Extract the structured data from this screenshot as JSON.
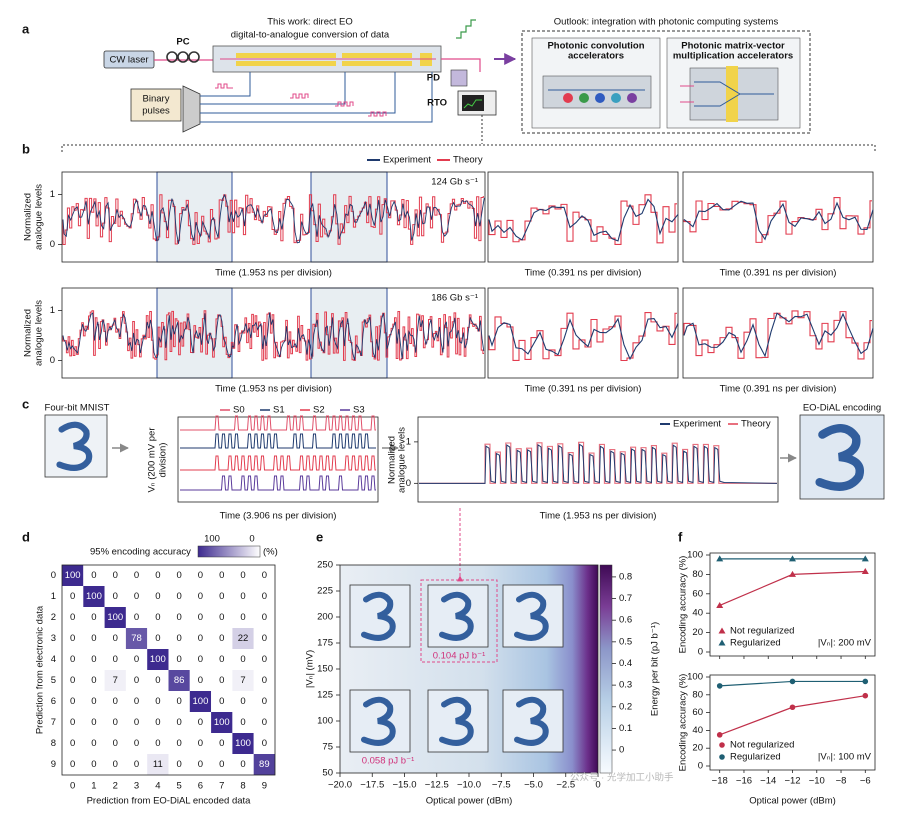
{
  "panel_a": {
    "label": "a",
    "cw_laser": "CW laser",
    "pc": "PC",
    "title_lines": [
      "This work: direct EO",
      "digital-to-analogue conversion of data"
    ],
    "binary_pulses": [
      "Binary",
      "pulses"
    ],
    "pd": "PD",
    "rto": "RTO",
    "outlook": "Outlook: integration with photonic computing systems",
    "conv": [
      "Photonic convolution",
      "accelerators"
    ],
    "mvm": [
      "Photonic matrix-vector",
      "multiplication accelerators"
    ]
  },
  "panel_b": {
    "label": "b",
    "legend": [
      "Experiment",
      "Theory"
    ],
    "colors": [
      "#1f3a6e",
      "#e23c4f"
    ],
    "ylabel": [
      "Normalized",
      "analogue levels"
    ],
    "ylim": [
      -0.35,
      1.45
    ],
    "yticks": [
      0,
      1
    ],
    "rates": [
      "124 Gb s⁻¹",
      "186 Gb s⁻¹"
    ],
    "xlabels": [
      "Time (1.953 ns per division)",
      "Time (0.391 ns per division)",
      "Time (0.391 ns per division)"
    ]
  },
  "panel_c": {
    "label": "c",
    "mnist": "Four-bit MNIST",
    "encoding": "EO-DiAL encoding",
    "s_legend": [
      "S0",
      "S1",
      "S2",
      "S3"
    ],
    "s_colors": [
      "#e0506a",
      "#1f3a6e",
      "#e23c4f",
      "#5a3a9a"
    ],
    "s_ylabel": [
      "Vₙ (200 mV per",
      "division)"
    ],
    "s_xlabel": "Time (3.906 ns per division)",
    "legend": [
      "Experiment",
      "Theory"
    ],
    "colors": [
      "#1f3a6e",
      "#e8707e"
    ],
    "ylabel": [
      "Normalized",
      "analogue levels"
    ],
    "ylim": [
      -0.45,
      1.6
    ],
    "yticks": [
      0,
      1
    ],
    "xlabel": "Time (1.953 ns per division)"
  },
  "panel_d": {
    "label": "d",
    "title": "95% encoding accuracy",
    "cbar": [
      "100",
      "0",
      "(%)"
    ],
    "ticks": [
      0,
      1,
      2,
      3,
      4,
      5,
      6,
      7,
      8,
      9
    ],
    "ylabel": "Prediction from electronic data",
    "xlabel": "Prediction from EO-DiAL encoded data",
    "matrix": [
      [
        100,
        0,
        0,
        0,
        0,
        0,
        0,
        0,
        0,
        0
      ],
      [
        0,
        100,
        0,
        0,
        0,
        0,
        0,
        0,
        0,
        0
      ],
      [
        0,
        0,
        100,
        0,
        0,
        0,
        0,
        0,
        0,
        0
      ],
      [
        0,
        0,
        0,
        78,
        0,
        0,
        0,
        0,
        22,
        0
      ],
      [
        0,
        0,
        0,
        0,
        100,
        0,
        0,
        0,
        0,
        0
      ],
      [
        0,
        0,
        7,
        0,
        0,
        86,
        0,
        0,
        7,
        0
      ],
      [
        0,
        0,
        0,
        0,
        0,
        0,
        100,
        0,
        0,
        0
      ],
      [
        0,
        0,
        0,
        0,
        0,
        0,
        0,
        100,
        0,
        0
      ],
      [
        0,
        0,
        0,
        0,
        0,
        0,
        0,
        0,
        100,
        0
      ],
      [
        0,
        0,
        0,
        0,
        11,
        0,
        0,
        0,
        0,
        89
      ]
    ]
  },
  "panel_e": {
    "label": "e",
    "xlabel": "Optical power (dBm)",
    "ylabel": "|Vₙ| (mV)",
    "xlim": [
      -20,
      0
    ],
    "xticks": [
      {
        "value": -20,
        "label": "−20.0"
      },
      {
        "value": -17.5,
        "label": "−17.5"
      },
      {
        "value": -15,
        "label": "−15.0"
      },
      {
        "value": -12.5,
        "label": "−12.5"
      },
      {
        "value": -10,
        "label": "−10.0"
      },
      {
        "value": -7.5,
        "label": "−7.5"
      },
      {
        "value": -5,
        "label": "−5.0"
      },
      {
        "value": -2.5,
        "label": "−2.5"
      },
      0
    ],
    "ylim": [
      50,
      250
    ],
    "yticks": [
      50,
      75,
      100,
      125,
      150,
      175,
      200,
      225,
      250
    ],
    "clabel": "Energy per bit (pJ b⁻¹)",
    "clim": [
      -0.106,
      0.855
    ],
    "cticks": [
      0,
      0.1,
      0.2,
      0.3,
      0.4,
      0.5,
      0.6,
      0.7,
      0.8
    ],
    "annotations": [
      "0.104 pJ b⁻¹",
      "0.058 pJ b⁻¹"
    ]
  },
  "panel_f": {
    "label": "f",
    "xlabel": "Optical power (dBm)",
    "ylabel": "Encoding accuracy (%)",
    "x": [
      -18,
      -12,
      -6
    ],
    "xlim": [
      -18.8,
      -5.2
    ],
    "xticks": [
      {
        "value": -18,
        "label": "−18"
      },
      {
        "value": -16,
        "label": "−16"
      },
      {
        "value": -14,
        "label": "−14"
      },
      {
        "value": -12,
        "label": "−12"
      },
      {
        "value": -10,
        "label": "−10"
      },
      {
        "value": -8,
        "label": "−8"
      },
      {
        "value": -6,
        "label": "−6"
      }
    ],
    "ylim": [
      0,
      100
    ],
    "yticks": [
      0,
      20,
      40,
      60,
      80,
      100
    ],
    "plots": [
      {
        "note": "|Vₙ|: 200 mV",
        "series": [
          {
            "name": "Not regularized",
            "color": "#c0304a",
            "marker": "triangle",
            "values": [
              48,
              80,
              83
            ]
          },
          {
            "name": "Regularized",
            "color": "#1f5f73",
            "marker": "triangle",
            "values": [
              96,
              96,
              96
            ]
          }
        ]
      },
      {
        "note": "|Vₙ|: 100 mV",
        "series": [
          {
            "name": "Not regularized",
            "color": "#c0304a",
            "marker": "circle",
            "values": [
              35,
              66,
              79
            ]
          },
          {
            "name": "Regularized",
            "color": "#1f5f73",
            "marker": "circle",
            "values": [
              90,
              95,
              95
            ]
          }
        ]
      }
    ]
  },
  "watermark": "公众号 · 光学加工小助手"
}
